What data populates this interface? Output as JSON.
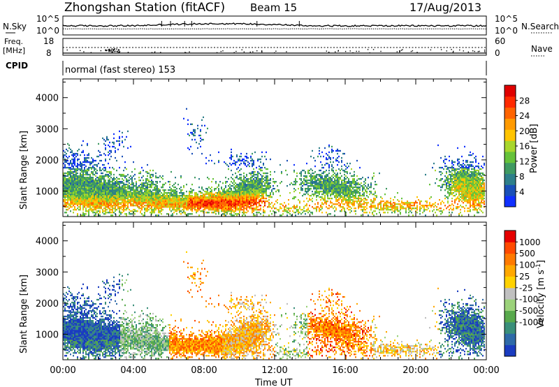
{
  "header": {
    "station": "Zhongshan Station (fitACF)",
    "beam": "Beam 15",
    "date": "17/Aug/2013"
  },
  "noise_panel": {
    "left_label": "N.Sky",
    "left_ticks": [
      "10^5",
      "10^0"
    ],
    "right_ticks": [
      "10^5",
      "10^0"
    ],
    "right_label": "N.Search"
  },
  "freq_panel": {
    "left_label_1": "Freq.",
    "left_label_2": "[MHz]",
    "left_ticks": [
      "18",
      "8"
    ],
    "right_ticks": [
      "60",
      "0"
    ],
    "right_label": "Nave"
  },
  "cpid_panel": {
    "label": "CPID",
    "text": "normal (fast stereo) 153"
  },
  "x_axis": {
    "ticks": [
      "00:00",
      "04:00",
      "08:00",
      "12:00",
      "16:00",
      "20:00",
      "00:00"
    ],
    "label": "Time UT"
  },
  "chart_data": [
    {
      "type": "heatmap",
      "quantity": "Power",
      "ylabel": "Slant Range [km]",
      "yticks": [
        1000,
        2000,
        3000,
        4000
      ],
      "ylim": [
        180,
        4600
      ],
      "xlim_hours": [
        0,
        24
      ],
      "colorbar": {
        "label": "Power [dB]",
        "ticks": [
          "4",
          "8",
          "12",
          "16",
          "20",
          "24",
          "28"
        ],
        "colors": [
          "#1030ff",
          "#1a50b8",
          "#2e7f8a",
          "#3f9a62",
          "#66c23a",
          "#a8d62c",
          "#ffc400",
          "#ff9a00",
          "#ff6400",
          "#ff2a00",
          "#e00000"
        ]
      }
    },
    {
      "type": "heatmap",
      "quantity": "Velocity",
      "ylabel": "Slant Range [km]",
      "yticks": [
        1000,
        2000,
        3000,
        4000
      ],
      "ylim": [
        180,
        4600
      ],
      "xlim_hours": [
        0,
        24
      ],
      "colorbar": {
        "label": "Velocity [m s",
        "label_sup": "-1",
        "label_end": "]",
        "ticks": [
          "1000",
          "500",
          "100",
          "25",
          "-25",
          "-100",
          "-500",
          "-1000"
        ],
        "colors": [
          "#1a3cc0",
          "#2e6aa8",
          "#3a8f7a",
          "#58a94c",
          "#9bd27a",
          "#c0c0c0",
          "#ffd200",
          "#ffa800",
          "#ff7a00",
          "#ff4a00",
          "#e60000"
        ]
      }
    }
  ]
}
